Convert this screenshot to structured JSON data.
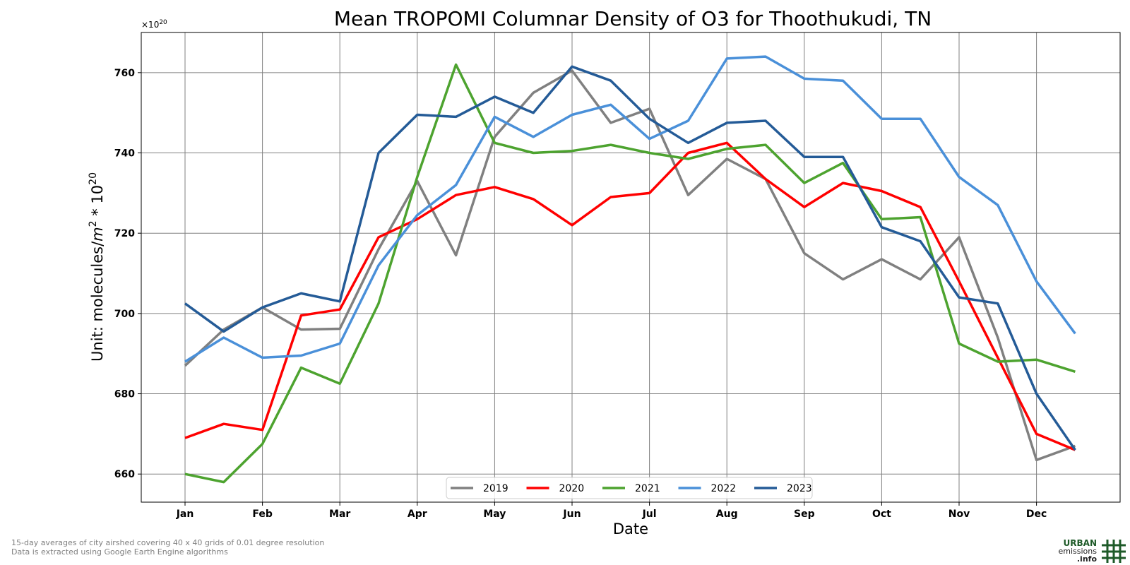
{
  "chart_data": {
    "type": "line",
    "title": "Mean TROPOMI Columnar Density of O3 for Thoothukudi, TN",
    "xlabel": "Date",
    "ylabel": "Unit: molecules/m² * 10²⁰",
    "ylabel_parts": {
      "pre": "Unit: molecules/",
      "m": "m",
      "sq": "2",
      "mid": " * 10",
      "exp": "20"
    },
    "offset_label": {
      "base": "×10",
      "exp": "20"
    },
    "x_ticks": [
      "Jan",
      "Feb",
      "Mar",
      "Apr",
      "May",
      "Jun",
      "Jul",
      "Aug",
      "Sep",
      "Oct",
      "Nov",
      "Dec"
    ],
    "y_ticks": [
      660,
      680,
      700,
      720,
      740,
      760
    ],
    "ylim": [
      653,
      770
    ],
    "grid": true,
    "legend_position": "bottom-center",
    "series": [
      {
        "name": "2019",
        "color": "#808080",
        "values": [
          687,
          696,
          701.5,
          696,
          696.2,
          716,
          733,
          714.5,
          744,
          755,
          760.5,
          747.5,
          751,
          729.5,
          738.5,
          733.5,
          715,
          708.5,
          713.5,
          708.5,
          719,
          694,
          663.5,
          667
        ]
      },
      {
        "name": "2020",
        "color": "#ff0000",
        "values": [
          669,
          672.5,
          671,
          699.5,
          701,
          719,
          723.5,
          729.5,
          731.5,
          728.5,
          722,
          729,
          730,
          740,
          742.5,
          733.5,
          726.5,
          732.5,
          730.5,
          726.5,
          708,
          689,
          670,
          666
        ]
      },
      {
        "name": "2021",
        "color": "#4da32f",
        "values": [
          660,
          658,
          667.5,
          686.5,
          682.5,
          702.5,
          734,
          762,
          742.5,
          740,
          740.5,
          742,
          740,
          738.5,
          741,
          742,
          732.5,
          737.5,
          723.5,
          724,
          692.5,
          688,
          688.5,
          685.5
        ]
      },
      {
        "name": "2022",
        "color": "#4a90d9",
        "values": [
          688,
          694,
          689,
          689.5,
          692.5,
          712,
          724.5,
          732,
          749,
          744,
          749.5,
          752,
          743.5,
          748,
          763.5,
          764,
          758.5,
          758,
          748.5,
          748.5,
          734,
          727,
          708,
          695
        ]
      },
      {
        "name": "2023",
        "color": "#245b97",
        "values": [
          702.5,
          695.5,
          701.5,
          705,
          703,
          740,
          749.5,
          749,
          754,
          750,
          761.5,
          758,
          748.5,
          742.5,
          747.5,
          748,
          739,
          739,
          721.5,
          718,
          704,
          702.5,
          680,
          666
        ]
      }
    ]
  },
  "footnotes": [
    "15-day averages of city airshed covering 40 x 40 grids of 0.01 degree resolution",
    "Data is extracted using Google Earth Engine algorithms"
  ],
  "logo": {
    "line1": "URBAN",
    "line2": "emissions",
    "line3": ".info",
    "color": "#1e5a28"
  }
}
